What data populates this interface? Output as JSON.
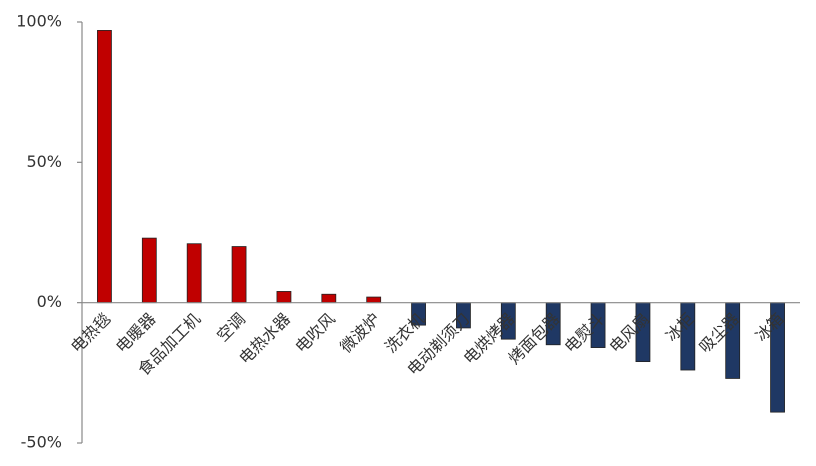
{
  "chart_data": {
    "type": "bar",
    "categories": [
      "电热毯",
      "电暖器",
      "食品加工机",
      "空调",
      "电热水器",
      "电吹风",
      "微波炉",
      "洗衣机",
      "电动剃须刀",
      "电烘烤器",
      "烤面包器",
      "电熨斗",
      "电风扇",
      "冰柜",
      "吸尘器",
      "冰箱"
    ],
    "values": [
      97,
      23,
      21,
      20,
      4,
      3,
      2,
      -8,
      -9,
      -13,
      -15,
      -16,
      -21,
      -24,
      -27,
      -39
    ],
    "colors": [
      "#c00000",
      "#c00000",
      "#c00000",
      "#c00000",
      "#c00000",
      "#c00000",
      "#c00000",
      "#1f3864",
      "#1f3864",
      "#1f3864",
      "#1f3864",
      "#1f3864",
      "#1f3864",
      "#1f3864",
      "#1f3864",
      "#1f3864"
    ],
    "ylim": [
      -50,
      100
    ],
    "yticks": [
      {
        "value": -50,
        "label": "-50%"
      },
      {
        "value": 0,
        "label": "0%"
      },
      {
        "value": 50,
        "label": "50%"
      },
      {
        "value": 100,
        "label": "100%"
      }
    ]
  }
}
